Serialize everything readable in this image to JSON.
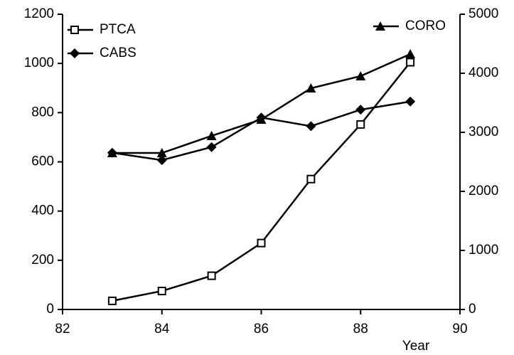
{
  "chart_data": {
    "type": "line",
    "xlabel": "Year",
    "x": [
      83,
      84,
      85,
      86,
      87,
      88,
      89
    ],
    "xlim": [
      82,
      90
    ],
    "xticks": [
      82,
      84,
      86,
      88,
      90
    ],
    "ylim": [
      0,
      1200
    ],
    "yticks": [
      0,
      200,
      400,
      600,
      800,
      1000,
      1200
    ],
    "y2lim": [
      0,
      5000
    ],
    "y2ticks": [
      0,
      1000,
      2000,
      3000,
      4000,
      5000
    ],
    "grid": false,
    "series": [
      {
        "name": "PTCA",
        "color": "#000000",
        "marker": "square-open",
        "values": [
          35,
          75,
          137,
          270,
          530,
          752,
          1005
        ]
      },
      {
        "name": "CABS",
        "color": "#000000",
        "marker": "diamond",
        "values": [
          637,
          607,
          660,
          780,
          745,
          812,
          845
        ]
      },
      {
        "name": "CORO",
        "color": "#000000",
        "marker": "triangle",
        "axis": "y2",
        "values": [
          2650,
          2650,
          2940,
          3217,
          3747,
          3952,
          4325
        ]
      }
    ]
  }
}
